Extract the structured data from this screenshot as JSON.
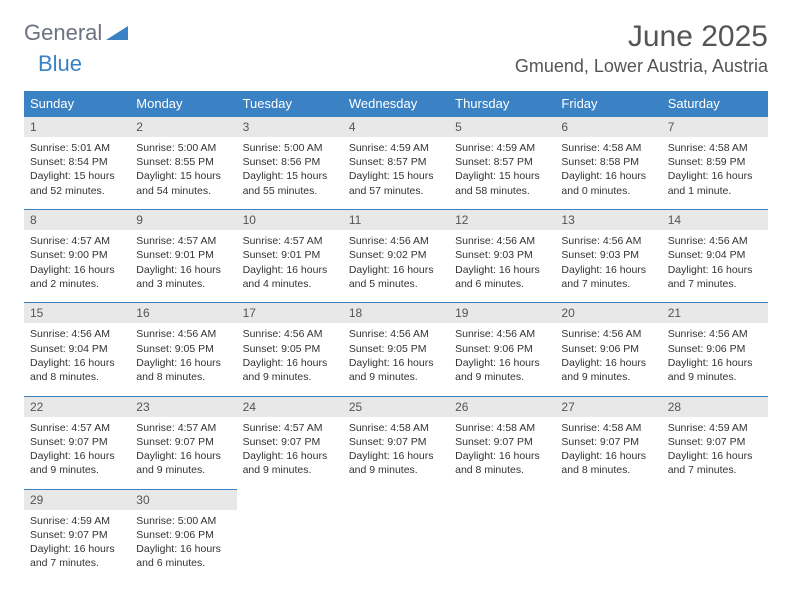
{
  "brand": {
    "part1": "General",
    "part2": "Blue"
  },
  "title": "June 2025",
  "location": "Gmuend, Lower Austria, Austria",
  "colors": {
    "header_bg": "#3b82c4",
    "header_fg": "#ffffff",
    "daynum_bg": "#e8e8e8",
    "text": "#333333",
    "muted": "#555555"
  },
  "dayNames": [
    "Sunday",
    "Monday",
    "Tuesday",
    "Wednesday",
    "Thursday",
    "Friday",
    "Saturday"
  ],
  "weeks": [
    [
      {
        "n": "1",
        "sr": "5:01 AM",
        "ss": "8:54 PM",
        "dl": "15 hours and 52 minutes."
      },
      {
        "n": "2",
        "sr": "5:00 AM",
        "ss": "8:55 PM",
        "dl": "15 hours and 54 minutes."
      },
      {
        "n": "3",
        "sr": "5:00 AM",
        "ss": "8:56 PM",
        "dl": "15 hours and 55 minutes."
      },
      {
        "n": "4",
        "sr": "4:59 AM",
        "ss": "8:57 PM",
        "dl": "15 hours and 57 minutes."
      },
      {
        "n": "5",
        "sr": "4:59 AM",
        "ss": "8:57 PM",
        "dl": "15 hours and 58 minutes."
      },
      {
        "n": "6",
        "sr": "4:58 AM",
        "ss": "8:58 PM",
        "dl": "16 hours and 0 minutes."
      },
      {
        "n": "7",
        "sr": "4:58 AM",
        "ss": "8:59 PM",
        "dl": "16 hours and 1 minute."
      }
    ],
    [
      {
        "n": "8",
        "sr": "4:57 AM",
        "ss": "9:00 PM",
        "dl": "16 hours and 2 minutes."
      },
      {
        "n": "9",
        "sr": "4:57 AM",
        "ss": "9:01 PM",
        "dl": "16 hours and 3 minutes."
      },
      {
        "n": "10",
        "sr": "4:57 AM",
        "ss": "9:01 PM",
        "dl": "16 hours and 4 minutes."
      },
      {
        "n": "11",
        "sr": "4:56 AM",
        "ss": "9:02 PM",
        "dl": "16 hours and 5 minutes."
      },
      {
        "n": "12",
        "sr": "4:56 AM",
        "ss": "9:03 PM",
        "dl": "16 hours and 6 minutes."
      },
      {
        "n": "13",
        "sr": "4:56 AM",
        "ss": "9:03 PM",
        "dl": "16 hours and 7 minutes."
      },
      {
        "n": "14",
        "sr": "4:56 AM",
        "ss": "9:04 PM",
        "dl": "16 hours and 7 minutes."
      }
    ],
    [
      {
        "n": "15",
        "sr": "4:56 AM",
        "ss": "9:04 PM",
        "dl": "16 hours and 8 minutes."
      },
      {
        "n": "16",
        "sr": "4:56 AM",
        "ss": "9:05 PM",
        "dl": "16 hours and 8 minutes."
      },
      {
        "n": "17",
        "sr": "4:56 AM",
        "ss": "9:05 PM",
        "dl": "16 hours and 9 minutes."
      },
      {
        "n": "18",
        "sr": "4:56 AM",
        "ss": "9:05 PM",
        "dl": "16 hours and 9 minutes."
      },
      {
        "n": "19",
        "sr": "4:56 AM",
        "ss": "9:06 PM",
        "dl": "16 hours and 9 minutes."
      },
      {
        "n": "20",
        "sr": "4:56 AM",
        "ss": "9:06 PM",
        "dl": "16 hours and 9 minutes."
      },
      {
        "n": "21",
        "sr": "4:56 AM",
        "ss": "9:06 PM",
        "dl": "16 hours and 9 minutes."
      }
    ],
    [
      {
        "n": "22",
        "sr": "4:57 AM",
        "ss": "9:07 PM",
        "dl": "16 hours and 9 minutes."
      },
      {
        "n": "23",
        "sr": "4:57 AM",
        "ss": "9:07 PM",
        "dl": "16 hours and 9 minutes."
      },
      {
        "n": "24",
        "sr": "4:57 AM",
        "ss": "9:07 PM",
        "dl": "16 hours and 9 minutes."
      },
      {
        "n": "25",
        "sr": "4:58 AM",
        "ss": "9:07 PM",
        "dl": "16 hours and 9 minutes."
      },
      {
        "n": "26",
        "sr": "4:58 AM",
        "ss": "9:07 PM",
        "dl": "16 hours and 8 minutes."
      },
      {
        "n": "27",
        "sr": "4:58 AM",
        "ss": "9:07 PM",
        "dl": "16 hours and 8 minutes."
      },
      {
        "n": "28",
        "sr": "4:59 AM",
        "ss": "9:07 PM",
        "dl": "16 hours and 7 minutes."
      }
    ],
    [
      {
        "n": "29",
        "sr": "4:59 AM",
        "ss": "9:07 PM",
        "dl": "16 hours and 7 minutes."
      },
      {
        "n": "30",
        "sr": "5:00 AM",
        "ss": "9:06 PM",
        "dl": "16 hours and 6 minutes."
      },
      null,
      null,
      null,
      null,
      null
    ]
  ],
  "labels": {
    "sunrise": "Sunrise: ",
    "sunset": "Sunset: ",
    "daylight": "Daylight: "
  }
}
